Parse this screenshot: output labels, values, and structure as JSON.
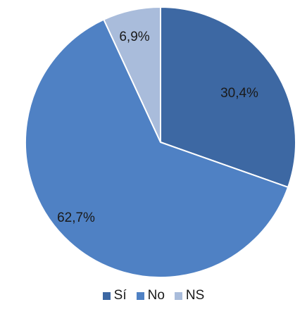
{
  "chart_data": {
    "type": "pie",
    "title": "",
    "start_angle_deg": 0,
    "direction": "clockwise",
    "legend_position": "bottom",
    "slices": [
      {
        "label": "Sí",
        "value": 30.4,
        "value_label": "30,4%",
        "color": "#3d68a3"
      },
      {
        "label": "No",
        "value": 62.7,
        "value_label": "62,7%",
        "color": "#4f81c4"
      },
      {
        "label": "NS",
        "value": 6.9,
        "value_label": "6,9%",
        "color": "#a9bcdb"
      }
    ]
  }
}
